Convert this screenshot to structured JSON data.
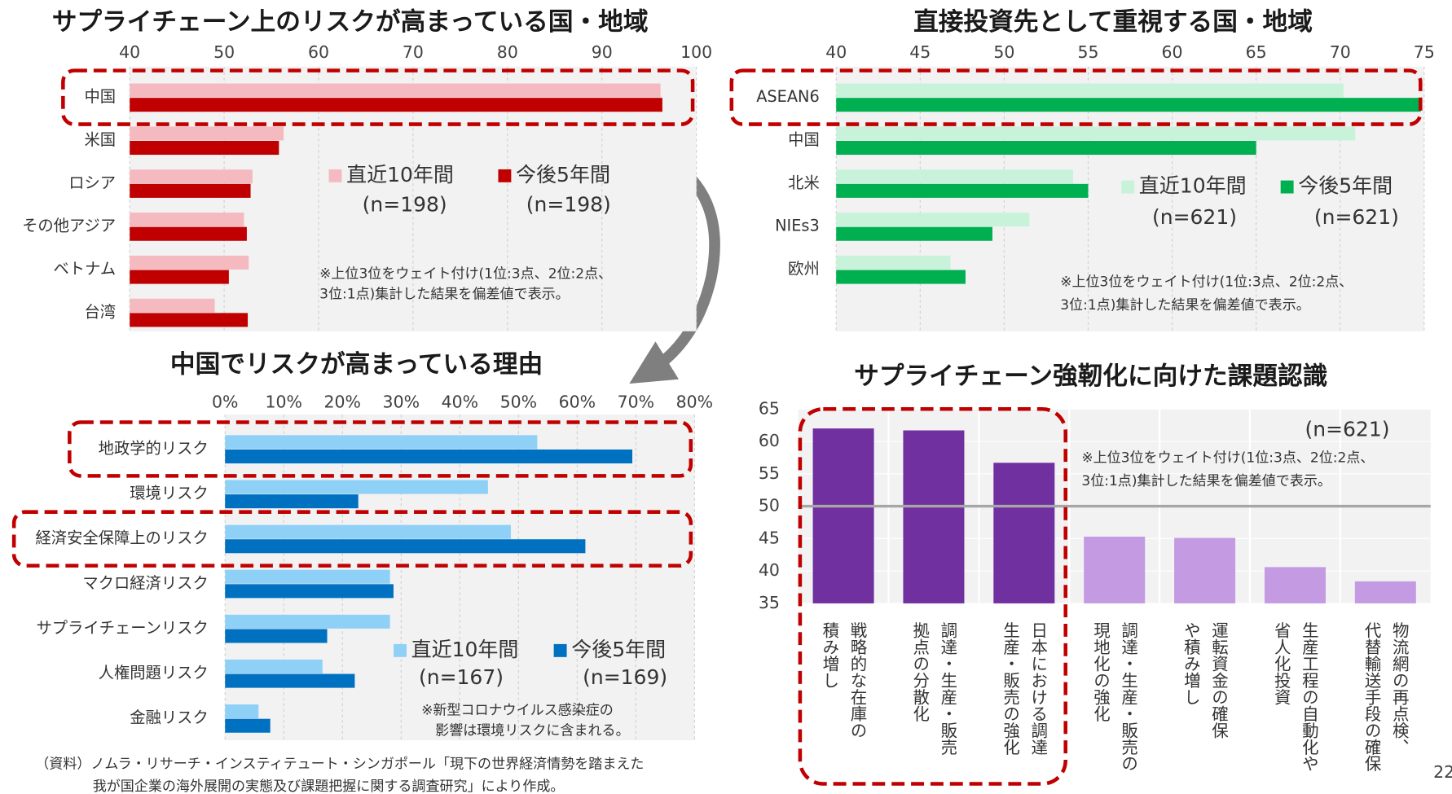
{
  "chart_data": [
    {
      "type": "hbar",
      "title": "サプライチェーン上のリスクが高まっている国・地域",
      "categories": [
        "中国",
        "米国",
        "ロシア",
        "その他アジア",
        "ベトナム",
        "台湾"
      ],
      "series": [
        {
          "name": "直近10年間",
          "n_label": "(n=198)",
          "color": "#f5b9c0",
          "values": [
            96.2,
            56.3,
            53.0,
            52.1,
            52.6,
            49.0
          ]
        },
        {
          "name": "今後5年間",
          "n_label": "(n=198)",
          "color": "#c00000",
          "values": [
            96.4,
            55.8,
            52.8,
            52.4,
            50.5,
            52.5
          ]
        }
      ],
      "xlim": [
        40,
        100
      ],
      "xticks": [
        40,
        50,
        60,
        70,
        80,
        90,
        100
      ],
      "grid": true,
      "note": [
        "※上位3位をウェイト付け(1位:3点、2位:2点、",
        "3位:1点)集計した結果を偏差値で表示。"
      ],
      "highlight": [
        0
      ]
    },
    {
      "type": "hbar",
      "title": "直接投資先として重視する国・地域",
      "categories": [
        "ASEAN6",
        "中国",
        "北米",
        "NIEs3",
        "欧州"
      ],
      "series": [
        {
          "name": "直近10年間",
          "n_label": "(n=621)",
          "color": "#c8f3da",
          "values": [
            70.2,
            70.9,
            54.1,
            51.5,
            46.8
          ]
        },
        {
          "name": "今後5年間",
          "n_label": "(n=621)",
          "color": "#00b050",
          "values": [
            74.8,
            65.0,
            55.0,
            49.3,
            47.7
          ]
        }
      ],
      "xlim": [
        40,
        75
      ],
      "xticks": [
        40,
        45,
        50,
        55,
        60,
        65,
        70,
        75
      ],
      "grid": true,
      "note": [
        "※上位3位をウェイト付け(1位:3点、2位:2点、",
        "3位:1点)集計した結果を偏差値で表示。"
      ],
      "highlight": [
        0
      ]
    },
    {
      "type": "hbar",
      "title": "中国でリスクが高まっている理由",
      "categories": [
        "地政学的リスク",
        "環境リスク",
        "経済安全保障上のリスク",
        "マクロ経済リスク",
        "サプライチェーンリスク",
        "人権問題リスク",
        "金融リスク"
      ],
      "series": [
        {
          "name": "直近10年間",
          "n_label": "(n=167)",
          "color": "#8fd0f7",
          "values": [
            53.2,
            44.8,
            48.7,
            28.1,
            28.1,
            16.6,
            5.7
          ]
        },
        {
          "name": "今後5年間",
          "n_label": "(n=169)",
          "color": "#0070c0",
          "values": [
            69.4,
            22.7,
            61.4,
            28.7,
            17.4,
            22.1,
            7.7
          ]
        }
      ],
      "xlim": [
        0,
        80
      ],
      "xticks": [
        {
          "value": 0,
          "label": "0%"
        },
        {
          "value": 10,
          "label": "10%"
        },
        {
          "value": 20,
          "label": "20%"
        },
        {
          "value": 30,
          "label": "30%"
        },
        {
          "value": 40,
          "label": "40%"
        },
        {
          "value": 50,
          "label": "50%"
        },
        {
          "value": 60,
          "label": "60%"
        },
        {
          "value": 70,
          "label": "70%"
        },
        {
          "value": 80,
          "label": "80%"
        }
      ],
      "grid": true,
      "note": [
        "※新型コロナウイルス感染症の",
        "影響は環境リスクに含まれる。"
      ],
      "highlight": [
        0,
        2
      ]
    },
    {
      "type": "bar",
      "title": "サプライチェーン強靭化に向けた課題認識",
      "categories": [
        [
          "戦略的な在庫の",
          "積み増し"
        ],
        [
          "調達・生産・販売",
          "拠点の分散化"
        ],
        [
          "日本における調達",
          "生産・販売の強化"
        ],
        [
          "調達・生産・販売の",
          "現地化の強化"
        ],
        [
          "運転資金の確保",
          "や積み増し"
        ],
        [
          "生産工程の自動化や",
          "省人化投資"
        ],
        [
          "物流網の再点検、",
          "代替輸送手段の確保"
        ]
      ],
      "values": [
        62.0,
        61.7,
        56.7,
        45.3,
        45.1,
        40.6,
        38.4
      ],
      "colors": [
        "#7030a0",
        "#7030a0",
        "#7030a0",
        "#c49be3",
        "#c49be3",
        "#c49be3",
        "#c49be3"
      ],
      "ylim": [
        35,
        65
      ],
      "yticks": [
        35,
        40,
        45,
        50,
        55,
        60,
        65
      ],
      "grid": true,
      "reference_line": 50,
      "annotation": "(n=621)",
      "note": [
        "※上位3位をウェイト付け(1位:3点、2位:2点、",
        "3位:1点)集計した結果を偏差値で表示。"
      ],
      "highlight": [
        0,
        1,
        2
      ]
    }
  ],
  "source": [
    "（資料）ノムラ・リサーチ・インスティテュート・シンガポール「現下の世界経済情勢を踏まえた",
    "我が国企業の海外展開の実態及び課題把握に関する調査研究」により作成。"
  ],
  "page_number": "22"
}
